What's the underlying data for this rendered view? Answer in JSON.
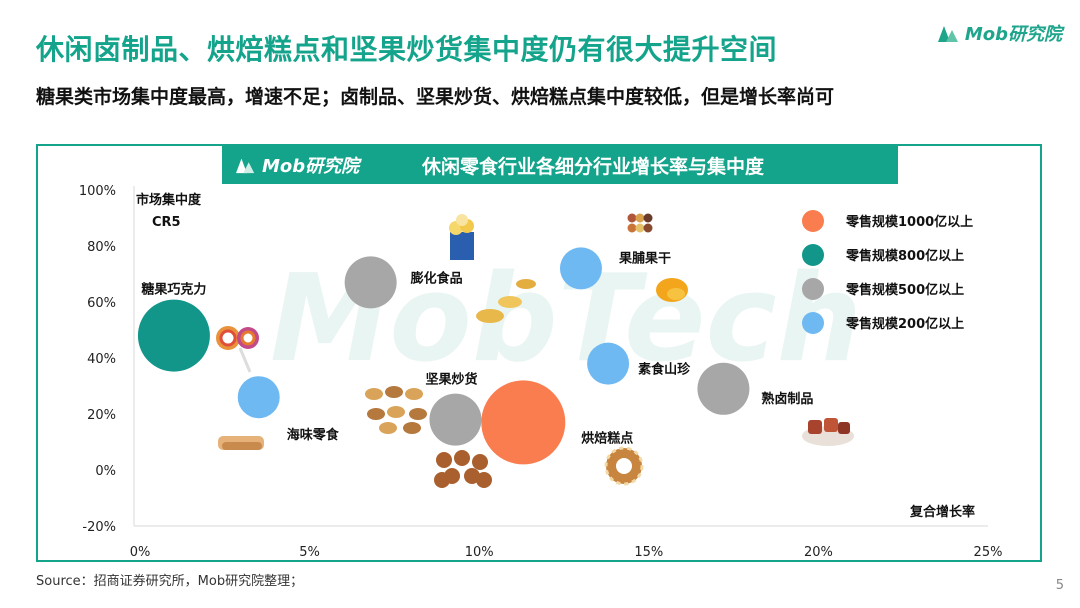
{
  "title": "休闲卤制品、烘焙糕点和坚果炒货集中度仍有很大提升空间",
  "subtitle": "糖果类市场集中度最高，增速不足；卤制品、坚果炒货、烘焙糕点集中度较低，但是增长率尚可",
  "logo_text": "Mob研究院",
  "source": "Source：招商证券研究所，Mob研究院整理；",
  "page_number": "5",
  "colors": {
    "brand": "#14a38b",
    "orange": "#f97d4f",
    "teal": "#12968a",
    "gray": "#a7a7a7",
    "blue": "#6fb9f3"
  },
  "chart_data": {
    "type": "scatter",
    "title": "休闲零食行业各细分行业增长率与集中度",
    "xlabel": "复合增长率",
    "ylabel": "市场集中度CR5",
    "xlim": [
      0,
      25
    ],
    "ylim": [
      -20,
      100
    ],
    "x_ticks": [
      "0%",
      "5%",
      "10%",
      "15%",
      "20%",
      "25%"
    ],
    "y_ticks": [
      "100%",
      "80%",
      "60%",
      "40%",
      "20%",
      "0%",
      "-20%"
    ],
    "legend": [
      {
        "label": "零售规模1000亿以上",
        "color": "#f97d4f",
        "category": "1000"
      },
      {
        "label": "零售规模800亿以上",
        "color": "#12968a",
        "category": "800"
      },
      {
        "label": "零售规模500亿以上",
        "color": "#a7a7a7",
        "category": "500"
      },
      {
        "label": "零售规模200亿以上",
        "color": "#6fb9f3",
        "category": "200"
      }
    ],
    "points": [
      {
        "name": "糖果巧克力",
        "x": 1.0,
        "y": 48,
        "category": "800"
      },
      {
        "name": "海味零食",
        "x": 3.5,
        "y": 26,
        "category": "200"
      },
      {
        "name": "膨化食品",
        "x": 6.8,
        "y": 67,
        "category": "500"
      },
      {
        "name": "坚果炒货",
        "x": 9.3,
        "y": 18,
        "category": "500"
      },
      {
        "name": "烘焙糕点",
        "x": 11.3,
        "y": 17,
        "category": "1000"
      },
      {
        "name": "果脯果干",
        "x": 13.0,
        "y": 72,
        "category": "200"
      },
      {
        "name": "素食山珍",
        "x": 13.8,
        "y": 38,
        "category": "200"
      },
      {
        "name": "熟卤制品",
        "x": 17.2,
        "y": 29,
        "category": "500"
      }
    ]
  }
}
